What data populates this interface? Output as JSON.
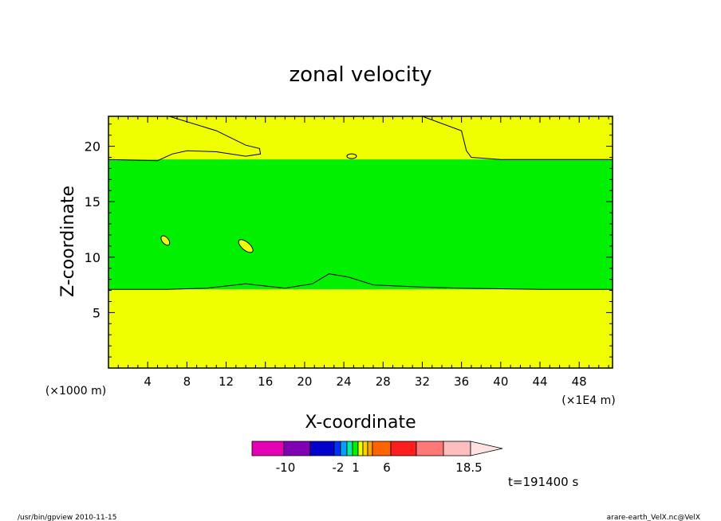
{
  "chart_data": {
    "type": "contour",
    "title": "zonal velocity",
    "xlabel": "X-coordinate",
    "ylabel": "Z-coordinate",
    "y_unit": "(×1000 m)",
    "x_unit": "(×1E4 m)",
    "xlim": [
      0,
      51.4
    ],
    "ylim": [
      0,
      22.7
    ],
    "x_ticks": [
      "4",
      "8",
      "12",
      "16",
      "20",
      "24",
      "28",
      "32",
      "36",
      "40",
      "44",
      "48"
    ],
    "y_ticks": [
      "5",
      "10",
      "15",
      "20"
    ],
    "fields": [
      {
        "color": "#f0ff00",
        "x": [
          0,
          51.4
        ],
        "y": [
          0,
          22.7
        ]
      },
      {
        "color": "#00f000",
        "x": [
          0,
          51.4
        ],
        "y": [
          7.1,
          18.8
        ]
      }
    ],
    "contours": [
      {
        "name": "lower boundary",
        "points": [
          [
            0,
            7.1
          ],
          [
            6,
            7.1
          ],
          [
            10,
            7.2
          ],
          [
            14,
            7.6
          ],
          [
            18,
            7.2
          ],
          [
            20.8,
            7.6
          ],
          [
            22.5,
            8.5
          ],
          [
            24.5,
            8.2
          ],
          [
            27,
            7.5
          ],
          [
            32,
            7.3
          ],
          [
            36,
            7.2
          ],
          [
            44,
            7.1
          ],
          [
            51.4,
            7.1
          ]
        ]
      },
      {
        "name": "upper boundary",
        "points": [
          [
            0,
            18.8
          ],
          [
            5,
            18.7
          ],
          [
            6.5,
            19.3
          ],
          [
            8,
            19.6
          ],
          [
            11,
            19.5
          ],
          [
            14,
            19.1
          ],
          [
            15.5,
            19.3
          ],
          [
            15.4,
            19.8
          ],
          [
            14,
            20.1
          ],
          [
            11,
            21.4
          ],
          [
            6.2,
            22.7
          ],
          [
            32,
            22.7
          ],
          [
            36,
            21.4
          ],
          [
            36.5,
            19.6
          ],
          [
            37,
            19.0
          ],
          [
            40,
            18.8
          ],
          [
            51.4,
            18.8
          ]
        ]
      }
    ],
    "islands": [
      {
        "color": "#f0ff00",
        "x": 5.8,
        "y": 11.5
      },
      {
        "color": "#f0ff00",
        "x": 14,
        "y": 11.0
      },
      {
        "color": "#f0ff00",
        "x": 24.8,
        "y": 19.1
      }
    ],
    "colorbar": {
      "colors": [
        "#e600b4",
        "#8000b4",
        "#0000cd",
        "#0032ff",
        "#00a0ff",
        "#00f0a0",
        "#00f000",
        "#f0ff00",
        "#ffd200",
        "#ffa000",
        "#ff6400",
        "#ff1e1e",
        "#ff7878",
        "#ffbebe",
        "#ffe1e1"
      ],
      "labels": [
        "-10",
        "-2",
        "1",
        "6",
        "18.5"
      ]
    },
    "annotations": {
      "time": "t=191400 s",
      "footer_left": "/usr/bin/gpview   2010-11-15",
      "footer_right": "arare-earth_VelX.nc@VelX"
    }
  }
}
